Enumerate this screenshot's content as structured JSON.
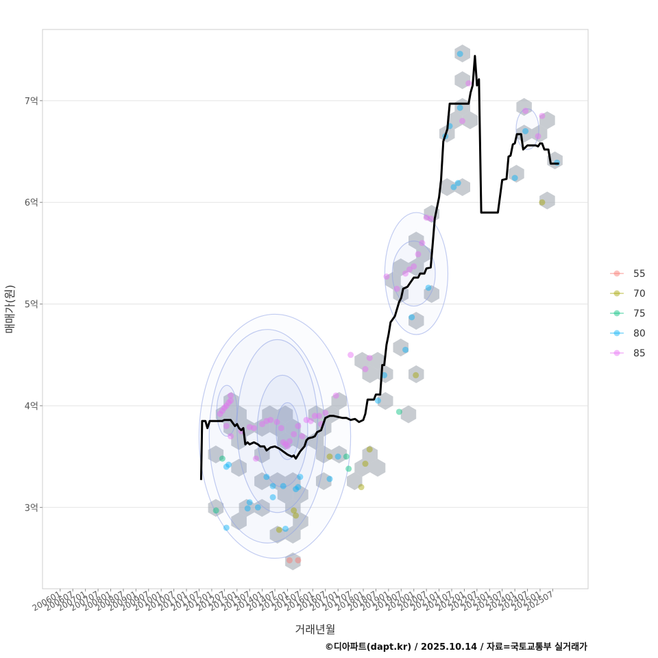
{
  "chart_data": {
    "type": "scatter",
    "title": "",
    "xlabel": "거래년월",
    "ylabel": "매매가(원)",
    "credit": "©디아파트(dapt.kr) / 2025.10.14 / 자료=국토교통부 실거래가",
    "x_range": [
      2005.3,
      2026.9
    ],
    "ylim": [
      2.2,
      7.7
    ],
    "y_ticks": [
      {
        "value": 3,
        "label": "3억"
      },
      {
        "value": 4,
        "label": "4억"
      },
      {
        "value": 5,
        "label": "5억"
      },
      {
        "value": 6,
        "label": "6억"
      },
      {
        "value": 7,
        "label": "7억"
      }
    ],
    "x_ticks": [
      {
        "value": 2006.0,
        "label": "200601"
      },
      {
        "value": 2006.5,
        "label": "200607"
      },
      {
        "value": 2007.0,
        "label": "200701"
      },
      {
        "value": 2007.5,
        "label": "200707"
      },
      {
        "value": 2008.0,
        "label": "200801"
      },
      {
        "value": 2008.5,
        "label": "200807"
      },
      {
        "value": 2009.0,
        "label": "200901"
      },
      {
        "value": 2009.5,
        "label": "200907"
      },
      {
        "value": 2010.0,
        "label": "201001"
      },
      {
        "value": 2010.5,
        "label": "201007"
      },
      {
        "value": 2011.0,
        "label": "201101"
      },
      {
        "value": 2011.5,
        "label": "201107"
      },
      {
        "value": 2012.0,
        "label": "201201"
      },
      {
        "value": 2012.5,
        "label": "201207"
      },
      {
        "value": 2013.0,
        "label": "201301"
      },
      {
        "value": 2013.5,
        "label": "201307"
      },
      {
        "value": 2014.0,
        "label": "201401"
      },
      {
        "value": 2014.5,
        "label": "201407"
      },
      {
        "value": 2015.0,
        "label": "201501"
      },
      {
        "value": 2015.5,
        "label": "201507"
      },
      {
        "value": 2016.0,
        "label": "201601"
      },
      {
        "value": 2016.5,
        "label": "201607"
      },
      {
        "value": 2017.0,
        "label": "201701"
      },
      {
        "value": 2017.5,
        "label": "201707"
      },
      {
        "value": 2018.0,
        "label": "201801"
      },
      {
        "value": 2018.5,
        "label": "201807"
      },
      {
        "value": 2019.0,
        "label": "201901"
      },
      {
        "value": 2019.5,
        "label": "201907"
      },
      {
        "value": 2020.0,
        "label": "202001"
      },
      {
        "value": 2020.5,
        "label": "202007"
      },
      {
        "value": 2021.0,
        "label": "202101"
      },
      {
        "value": 2021.5,
        "label": "202107"
      },
      {
        "value": 2022.0,
        "label": "202201"
      },
      {
        "value": 2022.5,
        "label": "202207"
      },
      {
        "value": 2023.0,
        "label": "202301"
      },
      {
        "value": 2023.5,
        "label": "202307"
      },
      {
        "value": 2024.0,
        "label": "202401"
      },
      {
        "value": 2024.5,
        "label": "202407"
      },
      {
        "value": 2025.0,
        "label": "202501"
      },
      {
        "value": 2025.5,
        "label": "202507"
      }
    ],
    "legend": {
      "title": "",
      "placement": "right",
      "entries": [
        {
          "name": "55",
          "color": "#F8766D"
        },
        {
          "name": "70",
          "color": "#A3A500"
        },
        {
          "name": "75",
          "color": "#00BF7D"
        },
        {
          "name": "80",
          "color": "#00B0F6"
        },
        {
          "name": "85",
          "color": "#E76BF3"
        }
      ]
    },
    "trend_line": {
      "name": "median",
      "color": "#000000",
      "points": [
        [
          2011.58,
          3.27
        ],
        [
          2011.62,
          3.85
        ],
        [
          2011.75,
          3.85
        ],
        [
          2011.83,
          3.78
        ],
        [
          2011.92,
          3.85
        ],
        [
          2012.17,
          3.85
        ],
        [
          2012.42,
          3.85
        ],
        [
          2012.5,
          3.86
        ],
        [
          2012.75,
          3.86
        ],
        [
          2012.92,
          3.8
        ],
        [
          2013.0,
          3.82
        ],
        [
          2013.08,
          3.78
        ],
        [
          2013.17,
          3.76
        ],
        [
          2013.25,
          3.78
        ],
        [
          2013.33,
          3.62
        ],
        [
          2013.42,
          3.64
        ],
        [
          2013.5,
          3.62
        ],
        [
          2013.67,
          3.64
        ],
        [
          2013.83,
          3.62
        ],
        [
          2013.92,
          3.6
        ],
        [
          2014.08,
          3.6
        ],
        [
          2014.17,
          3.56
        ],
        [
          2014.33,
          3.59
        ],
        [
          2014.5,
          3.6
        ],
        [
          2014.67,
          3.58
        ],
        [
          2014.83,
          3.55
        ],
        [
          2015.0,
          3.52
        ],
        [
          2015.17,
          3.5
        ],
        [
          2015.25,
          3.51
        ],
        [
          2015.33,
          3.48
        ],
        [
          2015.5,
          3.55
        ],
        [
          2015.67,
          3.6
        ],
        [
          2015.75,
          3.66
        ],
        [
          2015.83,
          3.68
        ],
        [
          2016.0,
          3.69
        ],
        [
          2016.08,
          3.7
        ],
        [
          2016.17,
          3.74
        ],
        [
          2016.33,
          3.76
        ],
        [
          2016.5,
          3.88
        ],
        [
          2016.67,
          3.9
        ],
        [
          2016.83,
          3.9
        ],
        [
          2017.0,
          3.89
        ],
        [
          2017.17,
          3.88
        ],
        [
          2017.33,
          3.88
        ],
        [
          2017.5,
          3.86
        ],
        [
          2017.67,
          3.87
        ],
        [
          2017.83,
          3.84
        ],
        [
          2018.0,
          3.86
        ],
        [
          2018.08,
          3.92
        ],
        [
          2018.17,
          4.06
        ],
        [
          2018.42,
          4.06
        ],
        [
          2018.5,
          4.11
        ],
        [
          2018.67,
          4.11
        ],
        [
          2018.75,
          4.4
        ],
        [
          2018.83,
          4.4
        ],
        [
          2018.92,
          4.6
        ],
        [
          2019.0,
          4.7
        ],
        [
          2019.08,
          4.82
        ],
        [
          2019.25,
          4.88
        ],
        [
          2019.42,
          5.02
        ],
        [
          2019.5,
          5.06
        ],
        [
          2019.58,
          5.15
        ],
        [
          2019.75,
          5.17
        ],
        [
          2019.83,
          5.2
        ],
        [
          2020.0,
          5.26
        ],
        [
          2020.17,
          5.26
        ],
        [
          2020.25,
          5.3
        ],
        [
          2020.42,
          5.3
        ],
        [
          2020.5,
          5.35
        ],
        [
          2020.67,
          5.36
        ],
        [
          2020.75,
          5.6
        ],
        [
          2020.83,
          5.84
        ],
        [
          2021.0,
          6.05
        ],
        [
          2021.08,
          6.22
        ],
        [
          2021.17,
          6.6
        ],
        [
          2021.33,
          6.72
        ],
        [
          2021.42,
          6.97
        ],
        [
          2021.83,
          6.97
        ],
        [
          2022.17,
          6.97
        ],
        [
          2022.25,
          7.08
        ],
        [
          2022.33,
          7.15
        ],
        [
          2022.42,
          7.44
        ],
        [
          2022.5,
          7.15
        ],
        [
          2022.58,
          7.21
        ],
        [
          2022.67,
          5.9
        ],
        [
          2023.25,
          5.9
        ],
        [
          2023.33,
          5.9
        ],
        [
          2023.5,
          6.22
        ],
        [
          2023.67,
          6.23
        ],
        [
          2023.75,
          6.45
        ],
        [
          2023.83,
          6.46
        ],
        [
          2023.92,
          6.57
        ],
        [
          2024.0,
          6.58
        ],
        [
          2024.08,
          6.67
        ],
        [
          2024.25,
          6.67
        ],
        [
          2024.33,
          6.52
        ],
        [
          2024.5,
          6.56
        ],
        [
          2024.67,
          6.56
        ],
        [
          2024.83,
          6.56
        ],
        [
          2024.92,
          6.55
        ],
        [
          2025.0,
          6.58
        ],
        [
          2025.08,
          6.58
        ],
        [
          2025.17,
          6.52
        ],
        [
          2025.33,
          6.52
        ],
        [
          2025.42,
          6.38
        ],
        [
          2025.58,
          6.38
        ],
        [
          2025.75,
          6.38
        ]
      ]
    },
    "series": [
      {
        "name": "55",
        "points": [
          [
            2015.08,
            2.48
          ],
          [
            2015.42,
            2.48
          ]
        ]
      },
      {
        "name": "70",
        "points": [
          [
            2014.67,
            2.78
          ],
          [
            2015.25,
            2.97
          ],
          [
            2015.33,
            2.92
          ],
          [
            2016.67,
            3.5
          ],
          [
            2017.92,
            3.2
          ],
          [
            2018.08,
            3.43
          ],
          [
            2018.25,
            3.57
          ],
          [
            2020.08,
            4.3
          ],
          [
            2025.08,
            6.0
          ]
        ]
      },
      {
        "name": "75",
        "points": [
          [
            2012.17,
            2.97
          ],
          [
            2012.42,
            3.48
          ],
          [
            2017.33,
            3.5
          ],
          [
            2017.42,
            3.38
          ],
          [
            2019.42,
            3.94
          ]
        ]
      },
      {
        "name": "80",
        "points": [
          [
            2012.58,
            2.8
          ],
          [
            2012.58,
            3.4
          ],
          [
            2012.67,
            3.42
          ],
          [
            2013.42,
            2.99
          ],
          [
            2013.5,
            3.05
          ],
          [
            2013.83,
            3.0
          ],
          [
            2014.17,
            3.3
          ],
          [
            2014.42,
            3.1
          ],
          [
            2014.42,
            3.21
          ],
          [
            2014.83,
            3.21
          ],
          [
            2015.33,
            3.18
          ],
          [
            2015.42,
            3.2
          ],
          [
            2015.5,
            3.3
          ],
          [
            2016.67,
            3.28
          ],
          [
            2017.0,
            3.5
          ],
          [
            2018.58,
            4.05
          ],
          [
            2018.83,
            4.3
          ],
          [
            2019.67,
            4.55
          ],
          [
            2019.92,
            4.87
          ],
          [
            2020.58,
            5.16
          ],
          [
            2021.25,
            6.65
          ],
          [
            2021.42,
            6.75
          ],
          [
            2021.58,
            6.15
          ],
          [
            2021.75,
            6.19
          ],
          [
            2021.83,
            6.93
          ],
          [
            2021.83,
            7.46
          ],
          [
            2024.0,
            6.24
          ],
          [
            2024.42,
            6.7
          ],
          [
            2025.67,
            6.39
          ],
          [
            2014.92,
            2.79
          ]
        ]
      },
      {
        "name": "85",
        "points": [
          [
            2012.33,
            3.92
          ],
          [
            2012.42,
            3.95
          ],
          [
            2012.5,
            3.98
          ],
          [
            2012.58,
            4.0
          ],
          [
            2012.67,
            4.03
          ],
          [
            2012.75,
            4.05
          ],
          [
            2012.75,
            4.1
          ],
          [
            2012.58,
            3.8
          ],
          [
            2012.75,
            3.7
          ],
          [
            2013.17,
            3.75
          ],
          [
            2013.5,
            3.79
          ],
          [
            2013.67,
            3.78
          ],
          [
            2013.75,
            3.48
          ],
          [
            2014.0,
            3.82
          ],
          [
            2014.17,
            3.85
          ],
          [
            2014.33,
            3.86
          ],
          [
            2014.58,
            3.84
          ],
          [
            2014.75,
            3.78
          ],
          [
            2014.83,
            3.64
          ],
          [
            2014.92,
            3.62
          ],
          [
            2015.0,
            3.6
          ],
          [
            2015.08,
            3.65
          ],
          [
            2015.25,
            3.72
          ],
          [
            2015.42,
            3.8
          ],
          [
            2015.58,
            3.7
          ],
          [
            2015.75,
            3.86
          ],
          [
            2015.92,
            3.85
          ],
          [
            2016.08,
            3.9
          ],
          [
            2016.25,
            3.9
          ],
          [
            2016.33,
            3.82
          ],
          [
            2016.5,
            3.93
          ],
          [
            2016.92,
            4.1
          ],
          [
            2017.5,
            4.5
          ],
          [
            2018.08,
            4.36
          ],
          [
            2018.25,
            4.47
          ],
          [
            2018.92,
            5.27
          ],
          [
            2019.33,
            5.15
          ],
          [
            2019.67,
            5.3
          ],
          [
            2019.83,
            5.34
          ],
          [
            2020.0,
            5.37
          ],
          [
            2020.17,
            5.49
          ],
          [
            2020.33,
            5.6
          ],
          [
            2020.5,
            5.85
          ],
          [
            2020.67,
            5.84
          ],
          [
            2021.92,
            6.8
          ],
          [
            2022.17,
            7.17
          ],
          [
            2024.42,
            6.9
          ],
          [
            2024.92,
            6.65
          ],
          [
            2025.08,
            6.85
          ]
        ]
      }
    ]
  }
}
